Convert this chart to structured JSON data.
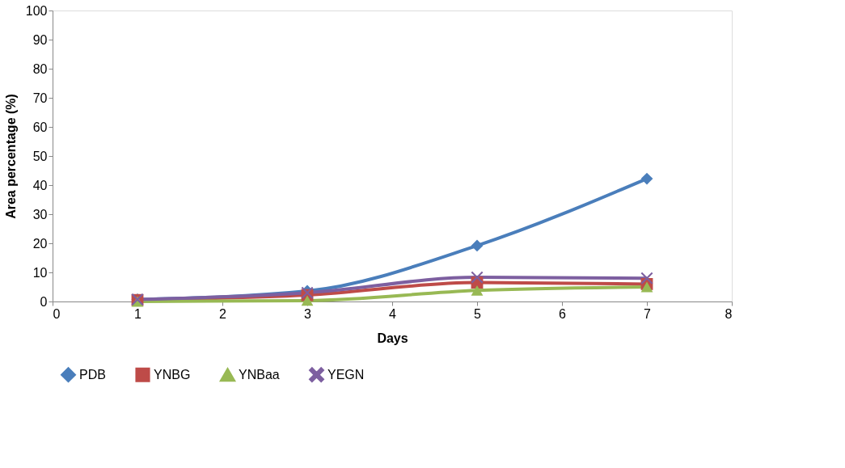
{
  "chart_data": {
    "type": "line",
    "xlabel": "Days",
    "ylabel": "Area percentage (%)",
    "x": [
      1,
      3,
      5,
      7
    ],
    "xlim": [
      0,
      8
    ],
    "xticks": [
      0,
      1,
      2,
      3,
      4,
      5,
      6,
      7,
      8
    ],
    "ylim": [
      0,
      100
    ],
    "yticks": [
      0,
      10,
      20,
      30,
      40,
      50,
      60,
      70,
      80,
      90,
      100
    ],
    "grid": false,
    "legend": "bottom",
    "line_style": "solid",
    "series": [
      {
        "name": "PDB",
        "color": "#4a7ebb",
        "marker": "diamond",
        "values": [
          0.7,
          3.6,
          19.2,
          42.2
        ]
      },
      {
        "name": "YNBG",
        "color": "#be4b48",
        "marker": "square",
        "values": [
          0.5,
          2.2,
          6.5,
          6
        ]
      },
      {
        "name": "YNBaa",
        "color": "#98b954",
        "marker": "triangle",
        "values": [
          0,
          0.3,
          3.8,
          5
        ]
      },
      {
        "name": "YEGN",
        "color": "#7d5fa0",
        "marker": "cross",
        "values": [
          0.7,
          3,
          8.3,
          8
        ]
      }
    ]
  }
}
